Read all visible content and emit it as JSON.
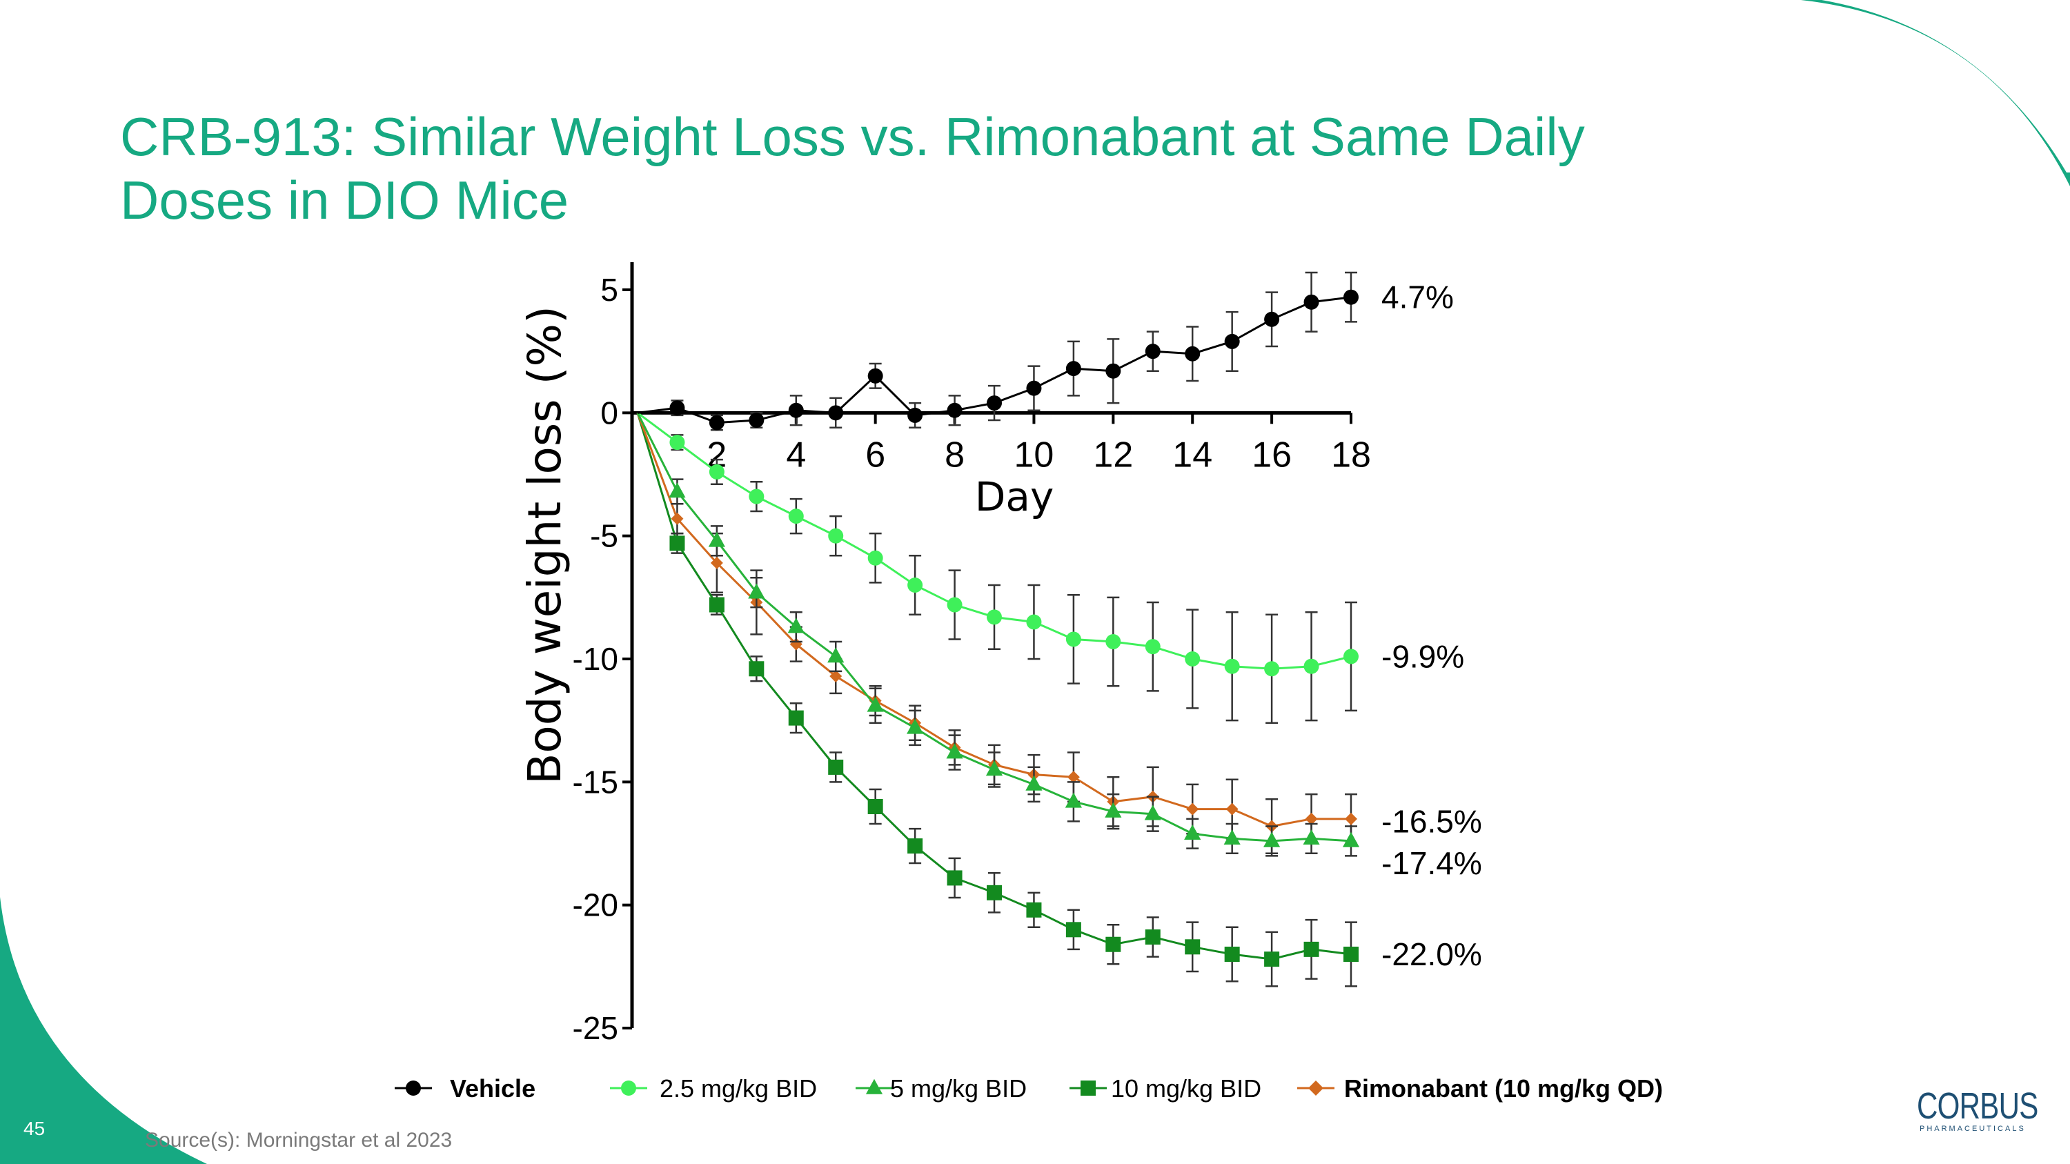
{
  "slide": {
    "title_line1": "CRB-913: Similar Weight Loss vs. Rimonabant at Same Daily",
    "title_line2": "Doses in DIO Mice",
    "page_number": "45",
    "source": "Source(s): Morningstar et al 2023",
    "logo_text": "CORBUS",
    "logo_subtext": "PHARMACEUTICALS"
  },
  "colors": {
    "title": "#16a982",
    "accent": "#16a982",
    "vehicle": "#000000",
    "dose_2_5": "#3ff05a",
    "dose_5": "#27b33a",
    "dose_10": "#138a1f",
    "rimonabant": "#d2691e"
  },
  "chart_data": {
    "type": "line",
    "title": "",
    "xlabel": "Day",
    "ylabel": "Body weight loss (%)",
    "xlim": [
      0,
      18
    ],
    "ylim": [
      -25,
      5
    ],
    "x_ticks": [
      2,
      4,
      6,
      8,
      10,
      12,
      14,
      16,
      18
    ],
    "y_ticks": [
      5,
      0,
      -5,
      -10,
      -15,
      -20,
      -25
    ],
    "x": [
      0,
      1,
      2,
      3,
      4,
      5,
      6,
      7,
      8,
      9,
      10,
      11,
      12,
      13,
      14,
      15,
      16,
      17,
      18
    ],
    "series": [
      {
        "name": "Vehicle",
        "marker": "circle",
        "color": "#000000",
        "end_label": "4.7%",
        "values": [
          0,
          0.2,
          -0.4,
          -0.3,
          0.1,
          0.0,
          1.5,
          -0.1,
          0.1,
          0.4,
          1.0,
          1.8,
          1.7,
          2.5,
          2.4,
          2.9,
          3.8,
          4.5,
          4.7
        ],
        "errors": [
          0,
          0.3,
          0.3,
          0.3,
          0.6,
          0.6,
          0.5,
          0.5,
          0.6,
          0.7,
          0.9,
          1.1,
          1.3,
          0.8,
          1.1,
          1.2,
          1.1,
          1.2,
          1.0
        ]
      },
      {
        "name": "2.5 mg/kg BID",
        "marker": "circle",
        "color": "#3ff05a",
        "end_label": "-9.9%",
        "values": [
          0,
          -1.2,
          -2.4,
          -3.4,
          -4.2,
          -5.0,
          -5.9,
          -7.0,
          -7.8,
          -8.3,
          -8.5,
          -9.2,
          -9.3,
          -9.5,
          -10.0,
          -10.3,
          -10.4,
          -10.3,
          -9.9
        ],
        "errors": [
          0,
          0.3,
          0.5,
          0.6,
          0.7,
          0.8,
          1.0,
          1.2,
          1.4,
          1.3,
          1.5,
          1.8,
          1.8,
          1.8,
          2.0,
          2.2,
          2.2,
          2.2,
          2.2
        ]
      },
      {
        "name": "5 mg/kg BID",
        "marker": "triangle",
        "color": "#27b33a",
        "end_label": "-17.4%",
        "values": [
          0,
          -3.2,
          -5.2,
          -7.3,
          -8.7,
          -9.9,
          -11.9,
          -12.8,
          -13.8,
          -14.5,
          -15.1,
          -15.8,
          -16.2,
          -16.3,
          -17.1,
          -17.3,
          -17.4,
          -17.3,
          -17.4
        ],
        "errors": [
          0,
          0.5,
          0.6,
          0.6,
          0.6,
          0.6,
          0.7,
          0.7,
          0.7,
          0.7,
          0.7,
          0.8,
          0.7,
          0.7,
          0.6,
          0.6,
          0.6,
          0.6,
          0.6
        ]
      },
      {
        "name": "10 mg/kg BID",
        "marker": "square",
        "color": "#138a1f",
        "end_label": "-22.0%",
        "values": [
          0,
          -5.3,
          -7.8,
          -10.4,
          -12.4,
          -14.4,
          -16.0,
          -17.6,
          -18.9,
          -19.5,
          -20.2,
          -21.0,
          -21.6,
          -21.3,
          -21.7,
          -22.0,
          -22.2,
          -21.8,
          -22.0
        ],
        "errors": [
          0,
          0.4,
          0.4,
          0.5,
          0.6,
          0.6,
          0.7,
          0.7,
          0.8,
          0.8,
          0.7,
          0.8,
          0.8,
          0.8,
          1.0,
          1.1,
          1.1,
          1.2,
          1.3
        ]
      },
      {
        "name": "Rimonabant (10 mg/kg QD)",
        "marker": "diamond",
        "color": "#d2691e",
        "end_label": "-16.5%",
        "values": [
          0,
          -4.3,
          -6.1,
          -7.7,
          -9.4,
          -10.7,
          -11.7,
          -12.6,
          -13.6,
          -14.3,
          -14.7,
          -14.8,
          -15.8,
          -15.6,
          -16.1,
          -16.1,
          -16.8,
          -16.5,
          -16.5
        ],
        "errors": [
          0,
          0.6,
          1.2,
          1.3,
          0.7,
          0.7,
          0.6,
          0.7,
          0.7,
          0.8,
          0.8,
          1.0,
          1.0,
          1.2,
          1.0,
          1.2,
          1.1,
          1.0,
          1.0
        ]
      }
    ],
    "legend": {
      "position": "bottom",
      "entries": [
        "Vehicle",
        "2.5 mg/kg BID",
        "5 mg/kg BID",
        "10 mg/kg BID",
        "Rimonabant (10 mg/kg QD)"
      ]
    }
  }
}
